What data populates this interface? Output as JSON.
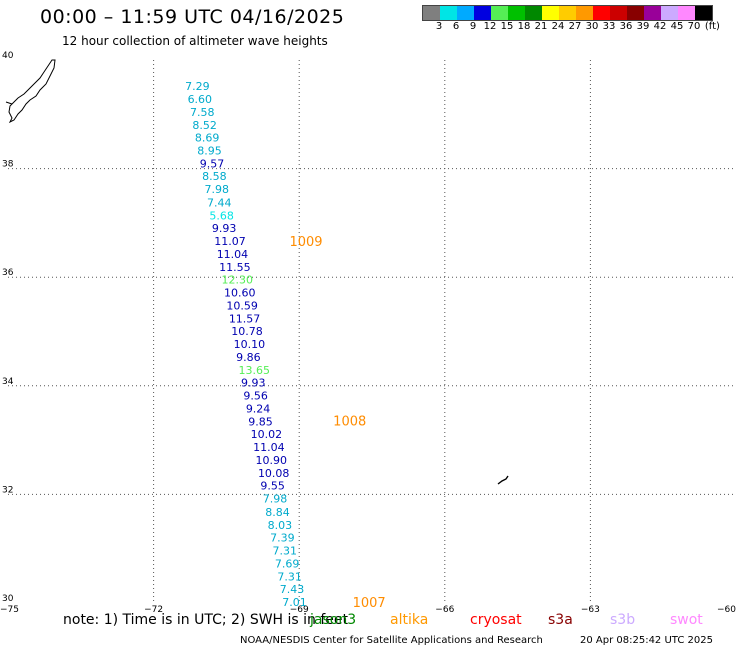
{
  "header": {
    "title": "00:00 – 11:59 UTC 04/16/2025",
    "subtitle": "12 hour collection of altimeter wave heights"
  },
  "colorbar": {
    "colors": [
      "#7f7f7f",
      "#00e5e5",
      "#00aaff",
      "#0000e0",
      "#55ee55",
      "#00c000",
      "#008800",
      "#ffff00",
      "#ffcc00",
      "#ff9900",
      "#ff0000",
      "#cc0000",
      "#880000",
      "#990099",
      "#ccaaff",
      "#ff88ff",
      "#000000"
    ],
    "labels": [
      "3",
      "6",
      "9",
      "12",
      "15",
      "18",
      "21",
      "24",
      "27",
      "30",
      "33",
      "36",
      "39",
      "42",
      "45",
      "70"
    ],
    "unit": "(ft)"
  },
  "axes": {
    "lat_ticks": [
      {
        "lat": 40,
        "label": "40"
      },
      {
        "lat": 38,
        "label": "38"
      },
      {
        "lat": 36,
        "label": "36"
      },
      {
        "lat": 34,
        "label": "34"
      },
      {
        "lat": 32,
        "label": "32"
      },
      {
        "lat": 30,
        "label": "30"
      }
    ],
    "lon_ticks": [
      {
        "lon": -75,
        "label": "−75"
      },
      {
        "lon": -72,
        "label": "−72"
      },
      {
        "lon": -69,
        "label": "−69"
      },
      {
        "lon": -66,
        "label": "−66"
      },
      {
        "lon": -63,
        "label": "−63"
      },
      {
        "lon": -60,
        "label": "−60"
      }
    ],
    "lon_range": [
      -75,
      -60
    ],
    "lat_range": [
      30,
      40
    ],
    "grid": "dotted"
  },
  "swh_points": [
    {
      "lat": 39.52,
      "lon": -71.35,
      "value": "7.29",
      "color": "#00aacc"
    },
    {
      "lat": 39.28,
      "lon": -71.3,
      "value": "6.60",
      "color": "#00aacc"
    },
    {
      "lat": 39.04,
      "lon": -71.25,
      "value": "7.58",
      "color": "#00aacc"
    },
    {
      "lat": 38.8,
      "lon": -71.2,
      "value": "8.52",
      "color": "#00aacc"
    },
    {
      "lat": 38.57,
      "lon": -71.15,
      "value": "8.69",
      "color": "#00aacc"
    },
    {
      "lat": 38.33,
      "lon": -71.1,
      "value": "8.95",
      "color": "#00aacc"
    },
    {
      "lat": 38.09,
      "lon": -71.05,
      "value": "9.57",
      "color": "#0000b0"
    },
    {
      "lat": 37.86,
      "lon": -71.0,
      "value": "8.58",
      "color": "#00aacc"
    },
    {
      "lat": 37.62,
      "lon": -70.95,
      "value": "7.98",
      "color": "#00aacc"
    },
    {
      "lat": 37.38,
      "lon": -70.9,
      "value": "7.44",
      "color": "#00aacc"
    },
    {
      "lat": 37.14,
      "lon": -70.85,
      "value": "5.68",
      "color": "#00e5e5"
    },
    {
      "lat": 36.91,
      "lon": -70.8,
      "value": "9.93",
      "color": "#0000b0"
    },
    {
      "lat": 36.67,
      "lon": -70.75,
      "value": "11.07",
      "color": "#0000b0"
    },
    {
      "lat": 36.43,
      "lon": -70.7,
      "value": "11.04",
      "color": "#0000b0"
    },
    {
      "lat": 36.19,
      "lon": -70.65,
      "value": "11.55",
      "color": "#0000b0"
    },
    {
      "lat": 35.96,
      "lon": -70.6,
      "value": "12.30",
      "color": "#55ee55"
    },
    {
      "lat": 35.72,
      "lon": -70.55,
      "value": "10.60",
      "color": "#0000b0"
    },
    {
      "lat": 35.48,
      "lon": -70.5,
      "value": "10.59",
      "color": "#0000b0"
    },
    {
      "lat": 35.24,
      "lon": -70.45,
      "value": "11.57",
      "color": "#0000b0"
    },
    {
      "lat": 35.01,
      "lon": -70.4,
      "value": "10.78",
      "color": "#0000b0"
    },
    {
      "lat": 34.77,
      "lon": -70.35,
      "value": "10.10",
      "color": "#0000b0"
    },
    {
      "lat": 34.53,
      "lon": -70.3,
      "value": "9.86",
      "color": "#0000b0"
    },
    {
      "lat": 34.29,
      "lon": -70.25,
      "value": "13.65",
      "color": "#55ee55"
    },
    {
      "lat": 34.06,
      "lon": -70.2,
      "value": "9.93",
      "color": "#0000b0"
    },
    {
      "lat": 33.82,
      "lon": -70.15,
      "value": "9.56",
      "color": "#0000b0"
    },
    {
      "lat": 33.58,
      "lon": -70.1,
      "value": "9.24",
      "color": "#0000b0"
    },
    {
      "lat": 33.34,
      "lon": -70.05,
      "value": "9.85",
      "color": "#0000b0"
    },
    {
      "lat": 33.11,
      "lon": -70.0,
      "value": "10.02",
      "color": "#0000b0"
    },
    {
      "lat": 32.87,
      "lon": -69.95,
      "value": "11.04",
      "color": "#0000b0"
    },
    {
      "lat": 32.63,
      "lon": -69.9,
      "value": "10.90",
      "color": "#0000b0"
    },
    {
      "lat": 32.39,
      "lon": -69.85,
      "value": "10.08",
      "color": "#0000b0"
    },
    {
      "lat": 32.16,
      "lon": -69.8,
      "value": "9.55",
      "color": "#0000b0"
    },
    {
      "lat": 31.92,
      "lon": -69.75,
      "value": "7.98",
      "color": "#00aacc"
    },
    {
      "lat": 31.68,
      "lon": -69.7,
      "value": "8.84",
      "color": "#00aacc"
    },
    {
      "lat": 31.44,
      "lon": -69.65,
      "value": "8.03",
      "color": "#00aacc"
    },
    {
      "lat": 31.21,
      "lon": -69.6,
      "value": "7.39",
      "color": "#00aacc"
    },
    {
      "lat": 30.97,
      "lon": -69.55,
      "value": "7.31",
      "color": "#00aacc"
    },
    {
      "lat": 30.73,
      "lon": -69.5,
      "value": "7.69",
      "color": "#00aacc"
    },
    {
      "lat": 30.49,
      "lon": -69.45,
      "value": "7.31",
      "color": "#00aacc"
    },
    {
      "lat": 30.26,
      "lon": -69.4,
      "value": "7.43",
      "color": "#00aacc"
    },
    {
      "lat": 30.02,
      "lon": -69.35,
      "value": "7.01",
      "color": "#00aacc"
    }
  ],
  "pressure_labels": [
    {
      "lat": 36.67,
      "lon": -69.2,
      "value": "1009"
    },
    {
      "lat": 33.36,
      "lon": -68.3,
      "value": "1008"
    },
    {
      "lat": 30.02,
      "lon": -67.9,
      "value": "1007"
    }
  ],
  "note": "note:  1) Time is in UTC; 2) SWH is in feet",
  "satellites": [
    {
      "name": "jason3",
      "color": "#008800"
    },
    {
      "name": "altika",
      "color": "#ff9900"
    },
    {
      "name": "cryosat",
      "color": "#ff0000"
    },
    {
      "name": "s3a",
      "color": "#880000"
    },
    {
      "name": "s3b",
      "color": "#ccaaff"
    },
    {
      "name": "swot",
      "color": "#ff88ff"
    }
  ],
  "footer": {
    "credit": "NOAA/NESDIS Center for Satellite Applications and Research",
    "generated": "20 Apr 08:25:42 UTC 2025"
  }
}
